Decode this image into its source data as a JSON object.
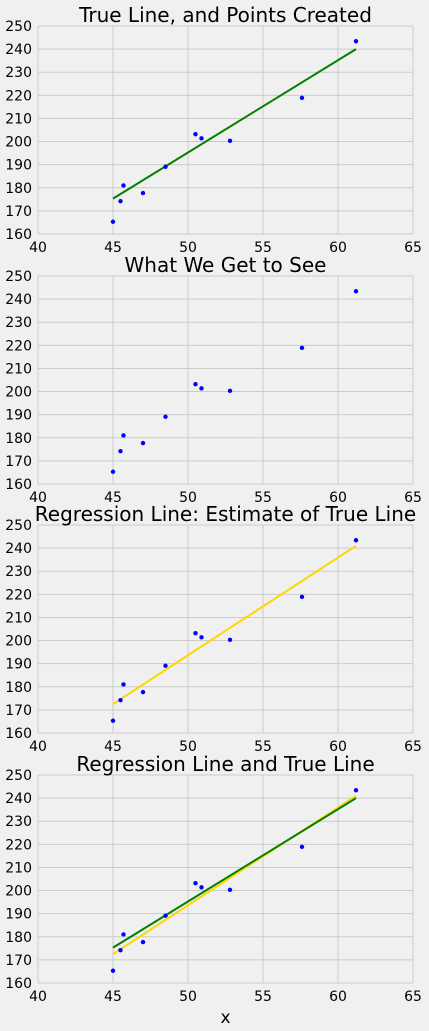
{
  "chart_data": [
    {
      "type": "scatter",
      "title": "True Line, and Points Created",
      "xlim": [
        40,
        65
      ],
      "ylim": [
        160,
        250
      ],
      "xticks": [
        40,
        45,
        50,
        55,
        60,
        65
      ],
      "yticks": [
        160,
        170,
        180,
        190,
        200,
        210,
        220,
        230,
        240,
        250
      ],
      "grid": true,
      "points": {
        "x": [
          45.0,
          45.5,
          45.7,
          47.0,
          48.5,
          50.5,
          50.9,
          52.8,
          57.6,
          61.2
        ],
        "y": [
          165.3,
          174.2,
          181.0,
          177.7,
          189.1,
          203.2,
          201.4,
          200.3,
          218.9,
          243.4
        ],
        "color": "#0000ff"
      },
      "lines": [
        {
          "x": [
            45.0,
            61.2
          ],
          "y": [
            175.3,
            240.0
          ],
          "color": "#008000"
        }
      ],
      "xlabel": ""
    },
    {
      "type": "scatter",
      "title": "What We Get to See",
      "xlim": [
        40,
        65
      ],
      "ylim": [
        160,
        250
      ],
      "xticks": [
        40,
        45,
        50,
        55,
        60,
        65
      ],
      "yticks": [
        160,
        170,
        180,
        190,
        200,
        210,
        220,
        230,
        240,
        250
      ],
      "grid": true,
      "points": {
        "x": [
          45.0,
          45.5,
          45.7,
          47.0,
          48.5,
          50.5,
          50.9,
          52.8,
          57.6,
          61.2
        ],
        "y": [
          165.3,
          174.2,
          181.0,
          177.7,
          189.1,
          203.2,
          201.4,
          200.3,
          218.9,
          243.4
        ],
        "color": "#0000ff"
      },
      "lines": [],
      "xlabel": ""
    },
    {
      "type": "scatter",
      "title": "Regression Line: Estimate of True Line",
      "xlim": [
        40,
        65
      ],
      "ylim": [
        160,
        250
      ],
      "xticks": [
        40,
        45,
        50,
        55,
        60,
        65
      ],
      "yticks": [
        160,
        170,
        180,
        190,
        200,
        210,
        220,
        230,
        240,
        250
      ],
      "grid": true,
      "points": {
        "x": [
          45.0,
          45.5,
          45.7,
          47.0,
          48.5,
          50.5,
          50.9,
          52.8,
          57.6,
          61.2
        ],
        "y": [
          165.3,
          174.2,
          181.0,
          177.7,
          189.1,
          203.2,
          201.4,
          200.3,
          218.9,
          243.4
        ],
        "color": "#0000ff"
      },
      "lines": [
        {
          "x": [
            45.0,
            61.2
          ],
          "y": [
            172.5,
            241.0
          ],
          "color": "#ffd700"
        }
      ],
      "xlabel": ""
    },
    {
      "type": "scatter",
      "title": "Regression Line and True Line",
      "xlim": [
        40,
        65
      ],
      "ylim": [
        160,
        250
      ],
      "xticks": [
        40,
        45,
        50,
        55,
        60,
        65
      ],
      "yticks": [
        160,
        170,
        180,
        190,
        200,
        210,
        220,
        230,
        240,
        250
      ],
      "grid": true,
      "points": {
        "x": [
          45.0,
          45.5,
          45.7,
          47.0,
          48.5,
          50.5,
          50.9,
          52.8,
          57.6,
          61.2
        ],
        "y": [
          165.3,
          174.2,
          181.0,
          177.7,
          189.1,
          203.2,
          201.4,
          200.3,
          218.9,
          243.4
        ],
        "color": "#0000ff"
      },
      "lines": [
        {
          "x": [
            45.0,
            61.2
          ],
          "y": [
            172.5,
            241.0
          ],
          "color": "#ffd700"
        },
        {
          "x": [
            45.0,
            61.2
          ],
          "y": [
            175.3,
            240.0
          ],
          "color": "#008000"
        }
      ],
      "xlabel": "x"
    }
  ]
}
